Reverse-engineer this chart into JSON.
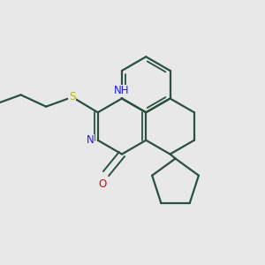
{
  "bg_color": "#e8e8e8",
  "bond_color": "#2a5040",
  "bond_lw": 1.6,
  "N_color": "#1a1aff",
  "S_color": "#b8b800",
  "O_color": "#cc1111",
  "label_fontsize": 8.5,
  "xlim": [
    0.0,
    3.0
  ],
  "ylim": [
    0.5,
    3.0
  ]
}
